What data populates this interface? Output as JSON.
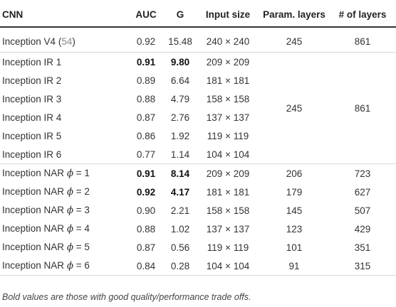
{
  "table": {
    "headers": [
      "CNN",
      "AUC",
      "G",
      "Input size",
      "Param. layers",
      "# of layers"
    ],
    "rows": [
      {
        "cnn": "Inception V4",
        "ref": "54",
        "auc": "0.92",
        "g": "15.48",
        "input": "240 × 240",
        "param": "245",
        "layers": "861",
        "auc_bold": false,
        "g_bold": false
      },
      {
        "cnn": "Inception IR 1",
        "auc": "0.91",
        "g": "9.80",
        "input": "209 × 209",
        "auc_bold": true,
        "g_bold": true
      },
      {
        "cnn": "Inception IR 2",
        "auc": "0.89",
        "g": "6.64",
        "input": "181 × 181",
        "auc_bold": false,
        "g_bold": false
      },
      {
        "cnn": "Inception IR 3",
        "auc": "0.88",
        "g": "4.79",
        "input": "158 × 158",
        "auc_bold": false,
        "g_bold": false
      },
      {
        "cnn": "Inception IR 4",
        "auc": "0.87",
        "g": "2.76",
        "input": "137 × 137",
        "auc_bold": false,
        "g_bold": false
      },
      {
        "cnn": "Inception IR 5",
        "auc": "0.86",
        "g": "1.92",
        "input": "119 × 119",
        "auc_bold": false,
        "g_bold": false
      },
      {
        "cnn": "Inception IR 6",
        "auc": "0.77",
        "g": "1.14",
        "input": "104 × 104",
        "auc_bold": false,
        "g_bold": false
      },
      {
        "cnn": "Inception NAR",
        "phi": "ϕ",
        "eq": " = 1",
        "auc": "0.91",
        "g": "8.14",
        "input": "209 × 209",
        "param": "206",
        "layers": "723",
        "auc_bold": true,
        "g_bold": true
      },
      {
        "cnn": "Inception NAR",
        "phi": "ϕ",
        "eq": " = 2",
        "auc": "0.92",
        "g": "4.17",
        "input": "181 × 181",
        "param": "179",
        "layers": "627",
        "auc_bold": true,
        "g_bold": true
      },
      {
        "cnn": "Inception NAR",
        "phi": "ϕ",
        "eq": " = 3",
        "auc": "0.90",
        "g": "2.21",
        "input": "158 × 158",
        "param": "145",
        "layers": "507",
        "auc_bold": false,
        "g_bold": false
      },
      {
        "cnn": "Inception NAR",
        "phi": "ϕ",
        "eq": " = 4",
        "auc": "0.88",
        "g": "1.02",
        "input": "137 × 137",
        "param": "123",
        "layers": "429",
        "auc_bold": false,
        "g_bold": false
      },
      {
        "cnn": "Inception NAR",
        "phi": "ϕ",
        "eq": " = 5",
        "auc": "0.87",
        "g": "0.56",
        "input": "119 × 119",
        "param": "101",
        "layers": "351",
        "auc_bold": false,
        "g_bold": false
      },
      {
        "cnn": "Inception NAR",
        "phi": "ϕ",
        "eq": " = 6",
        "auc": "0.84",
        "g": "0.28",
        "input": "104 × 104",
        "param": "91",
        "layers": "315",
        "auc_bold": false,
        "g_bold": false
      }
    ],
    "ir_shared": {
      "param": "245",
      "layers": "861"
    }
  },
  "footnote": "Bold values are those with good quality/performance trade offs."
}
